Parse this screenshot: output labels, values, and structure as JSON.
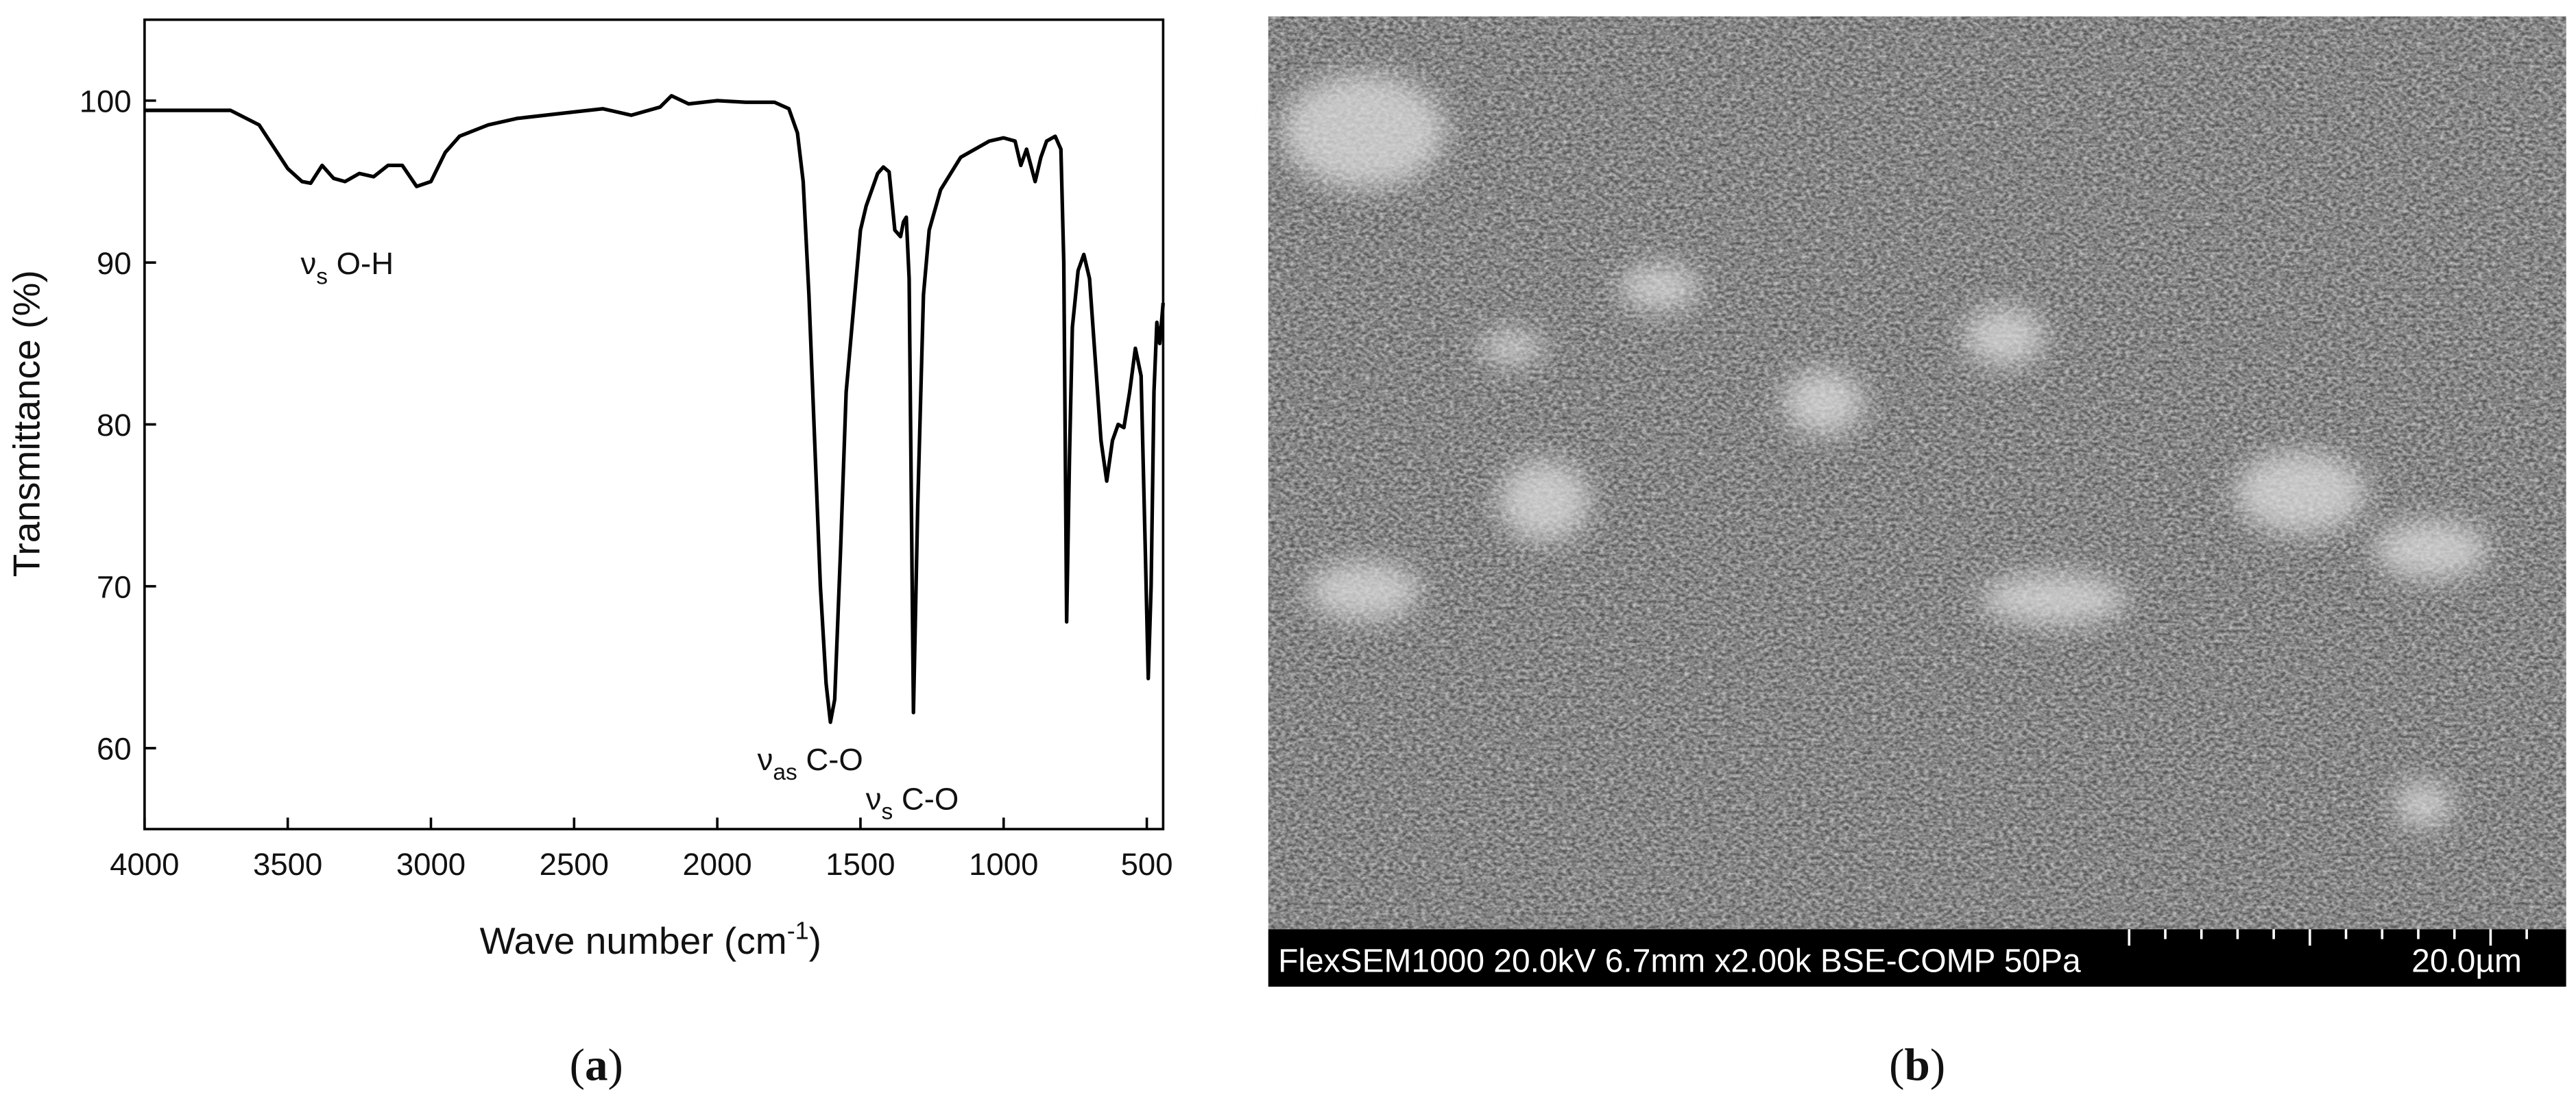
{
  "chart_data": {
    "type": "line",
    "ylabel": "Transmittance (%)",
    "xlabel": {
      "text": "Wave number (cm",
      "sup": "-1",
      "end": ")"
    },
    "panel_label": {
      "open": "(",
      "letter": "a",
      "close": ")"
    },
    "color": "#000000",
    "xlim": [
      4000,
      443
    ],
    "ylim": [
      55,
      105
    ],
    "xticks": [
      4000,
      3500,
      3000,
      2500,
      2000,
      1500,
      1000,
      500
    ],
    "yticks": [
      60,
      70,
      80,
      90,
      100
    ],
    "annotations": [
      {
        "text": "ν",
        "sub": "s",
        "rest": " O-H"
      },
      {
        "text": "ν",
        "sub": "as",
        "rest": " C-O"
      },
      {
        "text": "ν",
        "sub": "s",
        "rest": " C-O"
      }
    ],
    "x": [
      4000,
      3700,
      3600,
      3500,
      3450,
      3420,
      3380,
      3340,
      3300,
      3250,
      3200,
      3150,
      3100,
      3050,
      3000,
      2950,
      2900,
      2800,
      2700,
      2500,
      2400,
      2300,
      2200,
      2160,
      2100,
      2000,
      1900,
      1800,
      1750,
      1720,
      1700,
      1680,
      1660,
      1640,
      1620,
      1605,
      1590,
      1570,
      1550,
      1520,
      1500,
      1480,
      1460,
      1440,
      1420,
      1400,
      1380,
      1360,
      1350,
      1340,
      1330,
      1315,
      1300,
      1280,
      1260,
      1220,
      1150,
      1050,
      1000,
      960,
      940,
      920,
      890,
      870,
      850,
      820,
      800,
      790,
      780,
      770,
      760,
      740,
      720,
      700,
      680,
      660,
      640,
      620,
      600,
      580,
      560,
      540,
      520,
      505,
      495,
      485,
      475,
      465,
      455,
      443
    ],
    "values": [
      99.4,
      99.4,
      98.5,
      95.8,
      95,
      94.9,
      96,
      95.2,
      95,
      95.5,
      95.3,
      96,
      96,
      94.7,
      95,
      96.8,
      97.8,
      98.5,
      98.9,
      99.3,
      99.5,
      99.1,
      99.6,
      100.3,
      99.8,
      100,
      99.9,
      99.9,
      99.5,
      98,
      95,
      88,
      79,
      70,
      64,
      61.6,
      63,
      72,
      82,
      88,
      92,
      93.5,
      94.5,
      95.5,
      95.9,
      95.6,
      92,
      91.6,
      92.5,
      92.8,
      89,
      62.2,
      75,
      88,
      92,
      94.5,
      96.5,
      97.5,
      97.7,
      97.5,
      96,
      97,
      95,
      96.5,
      97.5,
      97.8,
      97,
      90,
      67.8,
      78,
      86,
      89.5,
      90.5,
      89,
      84,
      79,
      76.5,
      79,
      80,
      79.8,
      82,
      84.7,
      83,
      72,
      64.3,
      70,
      82,
      86.3,
      85,
      87.5
    ]
  },
  "image_panel": {
    "caption": "FlexSEM1000 20.0kV 6.7mm x2.00k BSE-COMP 50Pa",
    "scale": "20.0µm",
    "panel_label": {
      "open": "(",
      "letter": "b",
      "close": ")"
    }
  }
}
